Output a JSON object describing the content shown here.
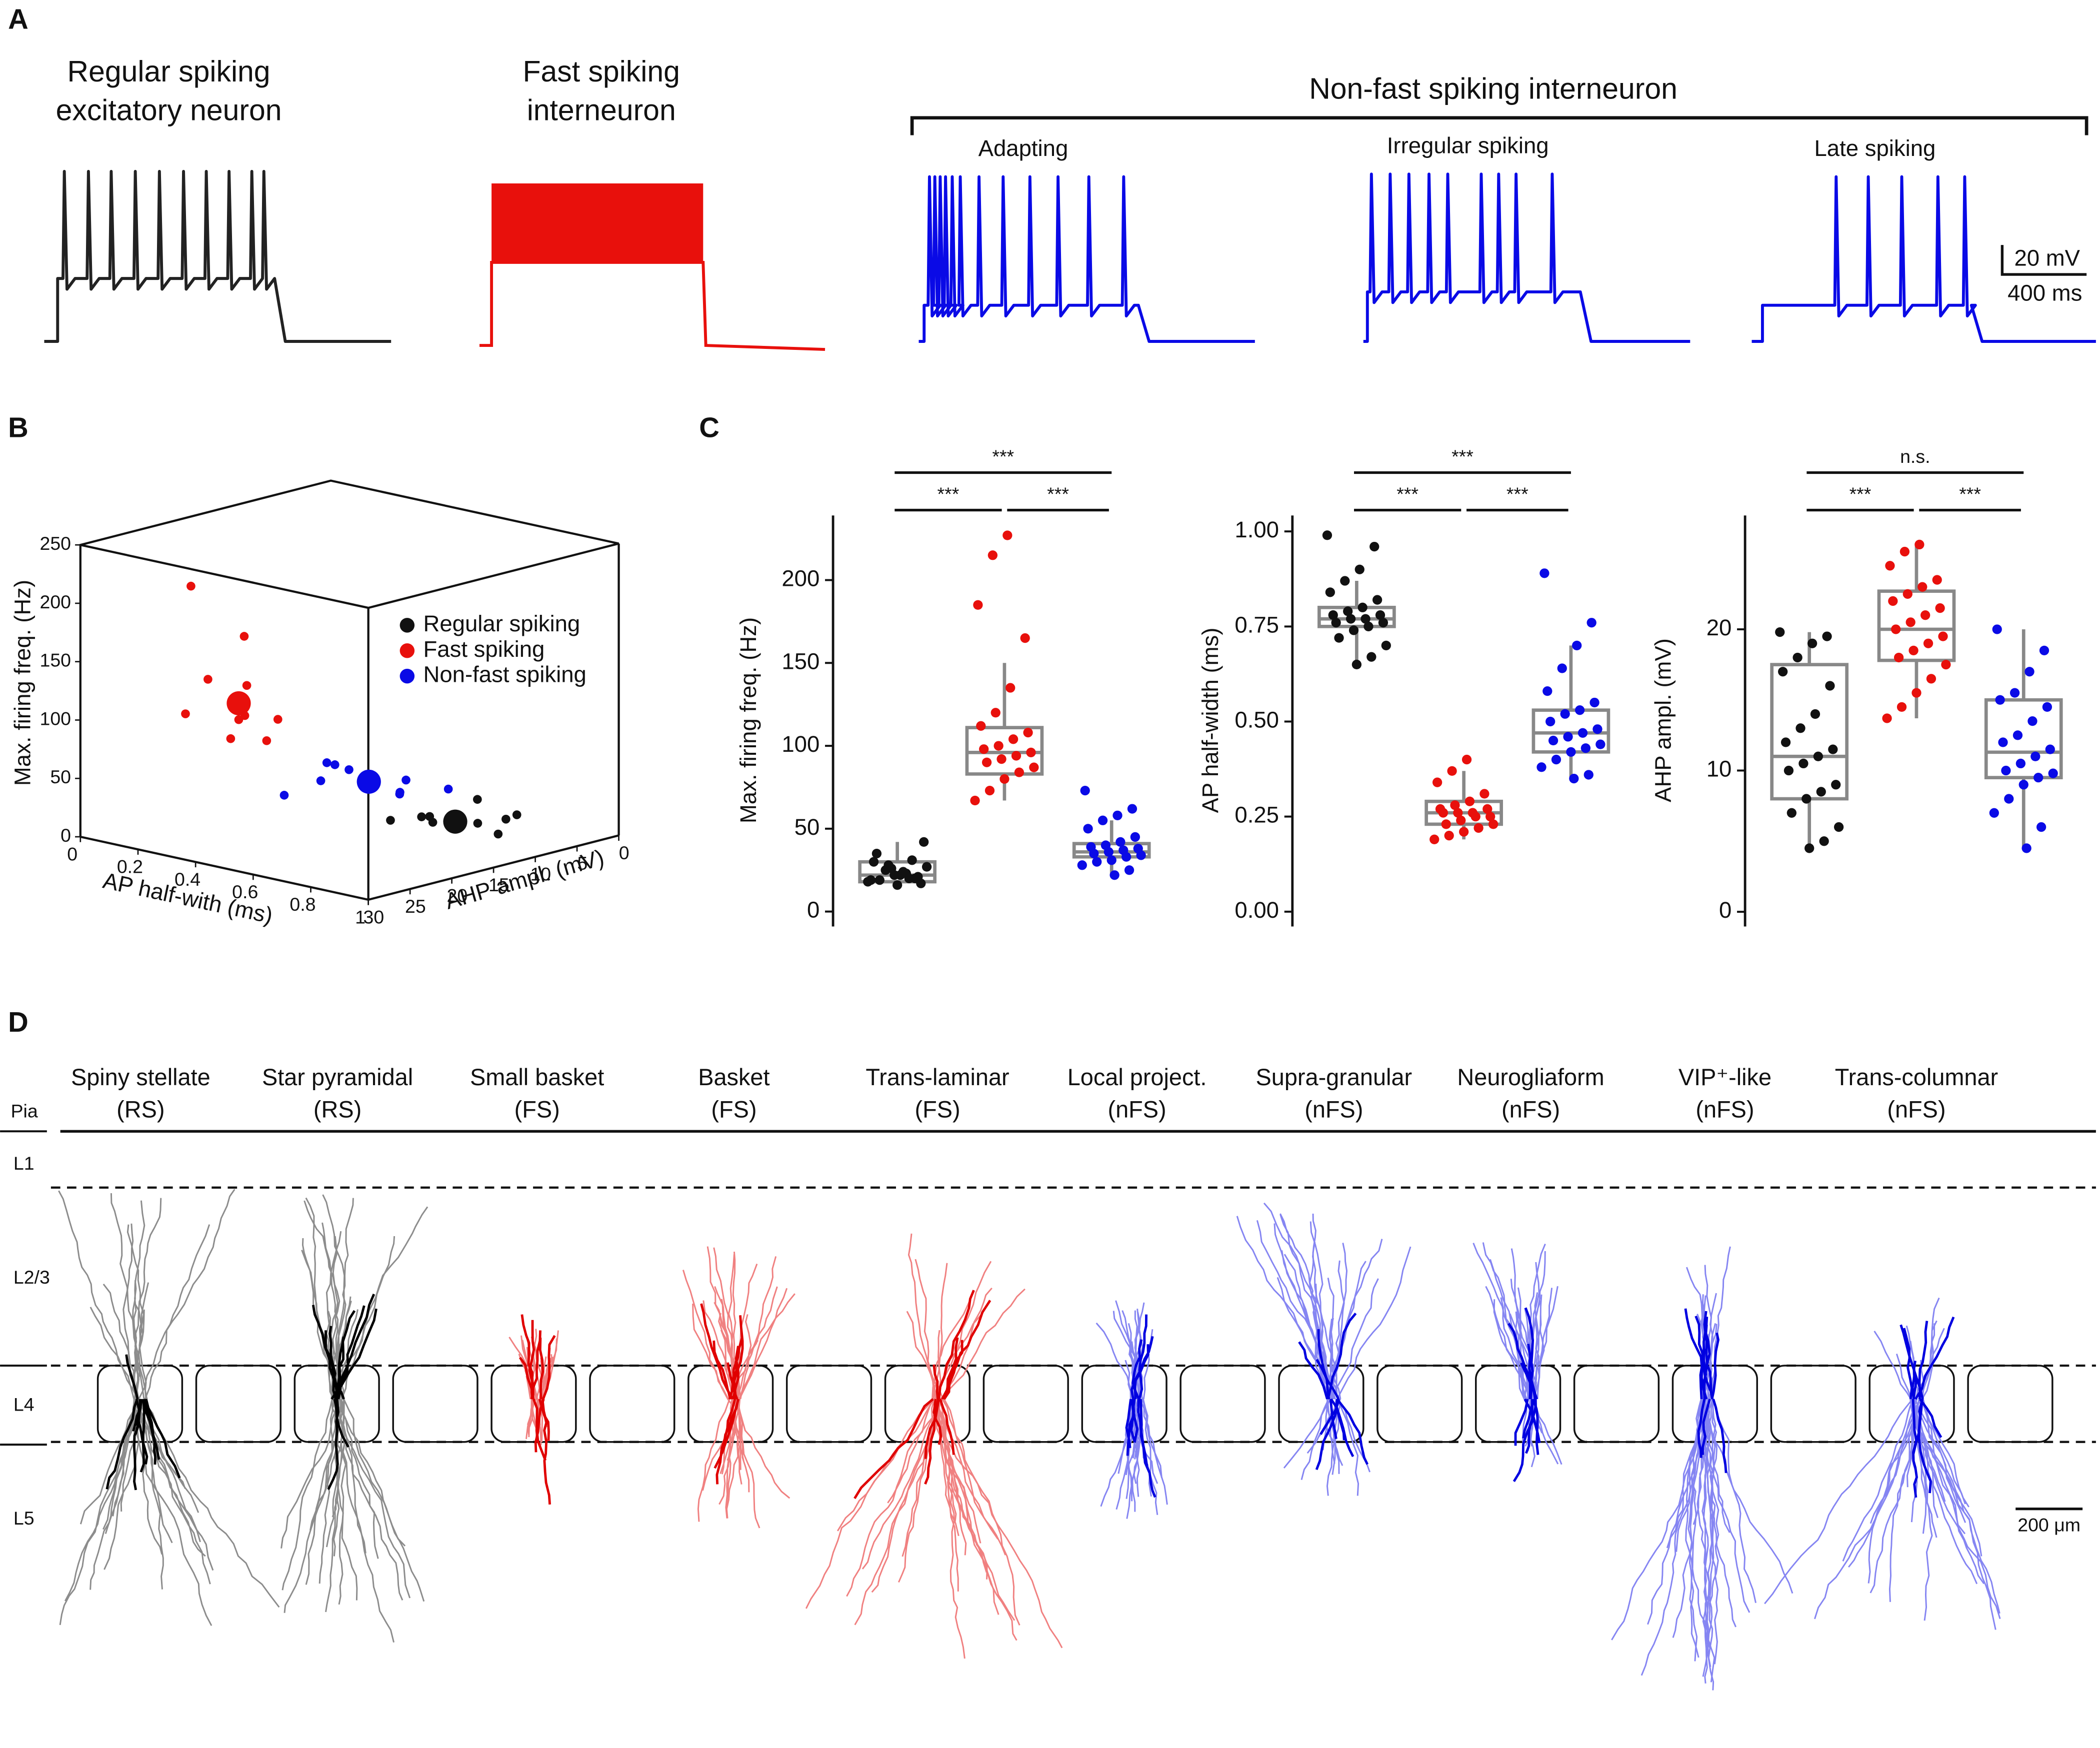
{
  "panel_labels": [
    "A",
    "B",
    "C",
    "D"
  ],
  "panel_a": {
    "traces": [
      {
        "title": [
          "Regular spiking",
          "excitatory neuron"
        ]
      },
      {
        "title": [
          "Fast spiking",
          "interneuron"
        ]
      }
    ],
    "group": {
      "title": "Non-fast spiking interneuron",
      "traces": [
        "Adapting",
        "Irregular spiking",
        "Late spiking"
      ]
    },
    "scale_bar": {
      "voltage": "20 mV",
      "time": "400 ms"
    }
  },
  "chart_data": [
    {
      "type": "scatter3d",
      "xlabel": "AP half-with (ms)",
      "ylabel": "Max. firing freq. (Hz)",
      "zlabel": "AHP ampl. (mV)",
      "xlim": [
        0,
        1
      ],
      "ylim": [
        0,
        250
      ],
      "zlim": [
        0,
        30
      ],
      "xticks": [
        0,
        0.2,
        0.4,
        0.6,
        0.8,
        1
      ],
      "yticks": [
        0,
        50,
        100,
        150,
        200,
        250
      ],
      "zticks": [
        0,
        5,
        10,
        15,
        20,
        25,
        30
      ],
      "series": [
        {
          "name": "Regular spiking",
          "color": "#111111",
          "x": [
            0.78,
            0.8,
            0.75,
            0.84,
            0.72,
            0.9,
            0.7,
            0.77,
            0.82,
            0.76
          ],
          "y": [
            22,
            18,
            30,
            20,
            25,
            16,
            28,
            35,
            19,
            24
          ],
          "z": [
            12,
            10,
            15,
            8,
            13,
            11,
            17,
            9,
            6,
            14
          ],
          "center": [
            0.78,
            22,
            12
          ]
        },
        {
          "name": "Fast spiking",
          "color": "#e8100c",
          "x": [
            0.26,
            0.23,
            0.29,
            0.21,
            0.25,
            0.31,
            0.27,
            0.24,
            0.28,
            0.22
          ],
          "y": [
            96,
            120,
            85,
            215,
            165,
            104,
            73,
            135,
            90,
            108
          ],
          "z": [
            20,
            18,
            22,
            24,
            19,
            21,
            17,
            23,
            16,
            25
          ],
          "center": [
            0.26,
            110,
            20
          ]
        },
        {
          "name": "Non-fast spiking",
          "color": "#0a0ae6",
          "x": [
            0.47,
            0.42,
            0.53,
            0.45,
            0.5,
            0.58,
            0.4,
            0.64,
            0.44,
            0.36
          ],
          "y": [
            38,
            55,
            30,
            62,
            25,
            45,
            42,
            35,
            50,
            33
          ],
          "z": [
            12,
            14,
            10,
            16,
            9,
            11,
            15,
            8,
            13,
            18
          ],
          "center": [
            0.48,
            40,
            12
          ]
        }
      ]
    },
    {
      "type": "box",
      "ylabel": "Max. firing freq. (Hz)",
      "ylim": [
        -9,
        239
      ],
      "yticks": [
        0,
        50,
        100,
        150,
        200
      ],
      "groups": [
        {
          "color": "#111111",
          "q1": 18,
          "median": 22,
          "q3": 30,
          "whisker_low": 15,
          "whisker_high": 42,
          "values": [
            18,
            20,
            22,
            25,
            19,
            21,
            24,
            28,
            30,
            17,
            23,
            26,
            35,
            42,
            20,
            22,
            19,
            27,
            31,
            16
          ]
        },
        {
          "color": "#e8100c",
          "q1": 83,
          "median": 96,
          "q3": 111,
          "whisker_low": 67,
          "whisker_high": 150,
          "values": [
            227,
            215,
            185,
            165,
            135,
            120,
            112,
            108,
            104,
            100,
            98,
            96,
            94,
            92,
            90,
            87,
            84,
            80,
            73,
            67
          ]
        },
        {
          "color": "#0a0ae6",
          "q1": 33,
          "median": 36,
          "q3": 41,
          "whisker_low": 22,
          "whisker_high": 55,
          "values": [
            73,
            62,
            58,
            55,
            50,
            45,
            42,
            40,
            39,
            38,
            37,
            36,
            35,
            34,
            33,
            31,
            30,
            28,
            25,
            22
          ]
        }
      ],
      "significance": [
        {
          "from": 0,
          "to": 2,
          "label": "***"
        },
        {
          "from": 0,
          "to": 1,
          "label": "***"
        },
        {
          "from": 1,
          "to": 2,
          "label": "***"
        }
      ]
    },
    {
      "type": "box",
      "ylabel": "AP half-width (ms)",
      "ylim": [
        -0.039,
        1.042
      ],
      "yticks": [
        {
          "value": 0,
          "label": "0.00"
        },
        {
          "value": 0.25,
          "label": "0.25"
        },
        {
          "value": 0.5,
          "label": "0.50"
        },
        {
          "value": 0.75,
          "label": "0.75"
        },
        {
          "value": 1,
          "label": "1.00"
        }
      ],
      "groups": [
        {
          "color": "#111111",
          "q1": 0.75,
          "median": 0.77,
          "q3": 0.8,
          "whisker_low": 0.65,
          "whisker_high": 0.87,
          "values": [
            0.99,
            0.96,
            0.9,
            0.87,
            0.84,
            0.82,
            0.8,
            0.79,
            0.78,
            0.78,
            0.77,
            0.77,
            0.76,
            0.76,
            0.75,
            0.74,
            0.72,
            0.7,
            0.67,
            0.65
          ]
        },
        {
          "color": "#e8100c",
          "q1": 0.23,
          "median": 0.26,
          "q3": 0.29,
          "whisker_low": 0.19,
          "whisker_high": 0.37,
          "values": [
            0.4,
            0.37,
            0.34,
            0.31,
            0.29,
            0.28,
            0.27,
            0.27,
            0.26,
            0.26,
            0.26,
            0.25,
            0.25,
            0.24,
            0.23,
            0.23,
            0.22,
            0.21,
            0.2,
            0.19
          ]
        },
        {
          "color": "#0a0ae6",
          "q1": 0.42,
          "median": 0.47,
          "q3": 0.53,
          "whisker_low": 0.35,
          "whisker_high": 0.7,
          "values": [
            0.89,
            0.76,
            0.7,
            0.64,
            0.58,
            0.55,
            0.53,
            0.52,
            0.5,
            0.48,
            0.47,
            0.46,
            0.45,
            0.44,
            0.43,
            0.42,
            0.4,
            0.38,
            0.36,
            0.35
          ]
        }
      ],
      "significance": [
        {
          "from": 0,
          "to": 2,
          "label": "***"
        },
        {
          "from": 0,
          "to": 1,
          "label": "***"
        },
        {
          "from": 1,
          "to": 2,
          "label": "***"
        }
      ]
    },
    {
      "type": "box",
      "ylabel": "AHP ampl. (mV)",
      "ylim": [
        -1.04,
        28.06
      ],
      "yticks": [
        0,
        10,
        20
      ],
      "groups": [
        {
          "color": "#111111",
          "q1": 8,
          "median": 11,
          "q3": 17.5,
          "whisker_low": 4.5,
          "whisker_high": 19.8,
          "values": [
            19.8,
            19.5,
            19,
            18,
            17,
            16,
            14,
            13,
            12,
            11.5,
            11,
            10.5,
            10,
            9,
            8.5,
            8,
            7,
            6,
            5,
            4.5
          ]
        },
        {
          "color": "#e8100c",
          "q1": 17.8,
          "median": 20,
          "q3": 22.7,
          "whisker_low": 13.7,
          "whisker_high": 26,
          "values": [
            26,
            25.5,
            24.5,
            23.5,
            23,
            22.5,
            22,
            21.5,
            21,
            20.5,
            20,
            19.5,
            19,
            18.5,
            18,
            17.5,
            16.5,
            15.5,
            14.5,
            13.7
          ]
        },
        {
          "color": "#0a0ae6",
          "q1": 9.5,
          "median": 11.3,
          "q3": 15,
          "whisker_low": 4.5,
          "whisker_high": 20,
          "values": [
            20,
            18.5,
            17,
            15.5,
            15,
            14.5,
            13.5,
            12.5,
            12,
            11.5,
            11,
            10.5,
            10,
            9.8,
            9.5,
            9,
            8,
            7,
            6,
            4.5
          ]
        }
      ],
      "significance": [
        {
          "from": 0,
          "to": 2,
          "label": "n.s."
        },
        {
          "from": 0,
          "to": 1,
          "label": "***"
        },
        {
          "from": 1,
          "to": 2,
          "label": "***"
        }
      ]
    }
  ],
  "panel_d": {
    "pia": "Pia",
    "layers": [
      "L1",
      "L2/3",
      "L4",
      "L5"
    ],
    "neurons": [
      {
        "name": "Spiny stellate",
        "class": "(RS)"
      },
      {
        "name": "Star pyramidal",
        "class": "(RS)"
      },
      {
        "name": "Small basket",
        "class": "(FS)"
      },
      {
        "name": "Basket",
        "class": "(FS)"
      },
      {
        "name": "Trans-laminar",
        "class": "(FS)"
      },
      {
        "name": "Local project.",
        "class": "(nFS)"
      },
      {
        "name": "Supra-granular",
        "class": "(nFS)"
      },
      {
        "name": "Neurogliaform",
        "class": "(nFS)"
      },
      {
        "name": "VIP⁺-like",
        "class": "(nFS)"
      },
      {
        "name": "Trans-columnar",
        "class": "(nFS)"
      }
    ],
    "scale_bar": "200 μm"
  }
}
